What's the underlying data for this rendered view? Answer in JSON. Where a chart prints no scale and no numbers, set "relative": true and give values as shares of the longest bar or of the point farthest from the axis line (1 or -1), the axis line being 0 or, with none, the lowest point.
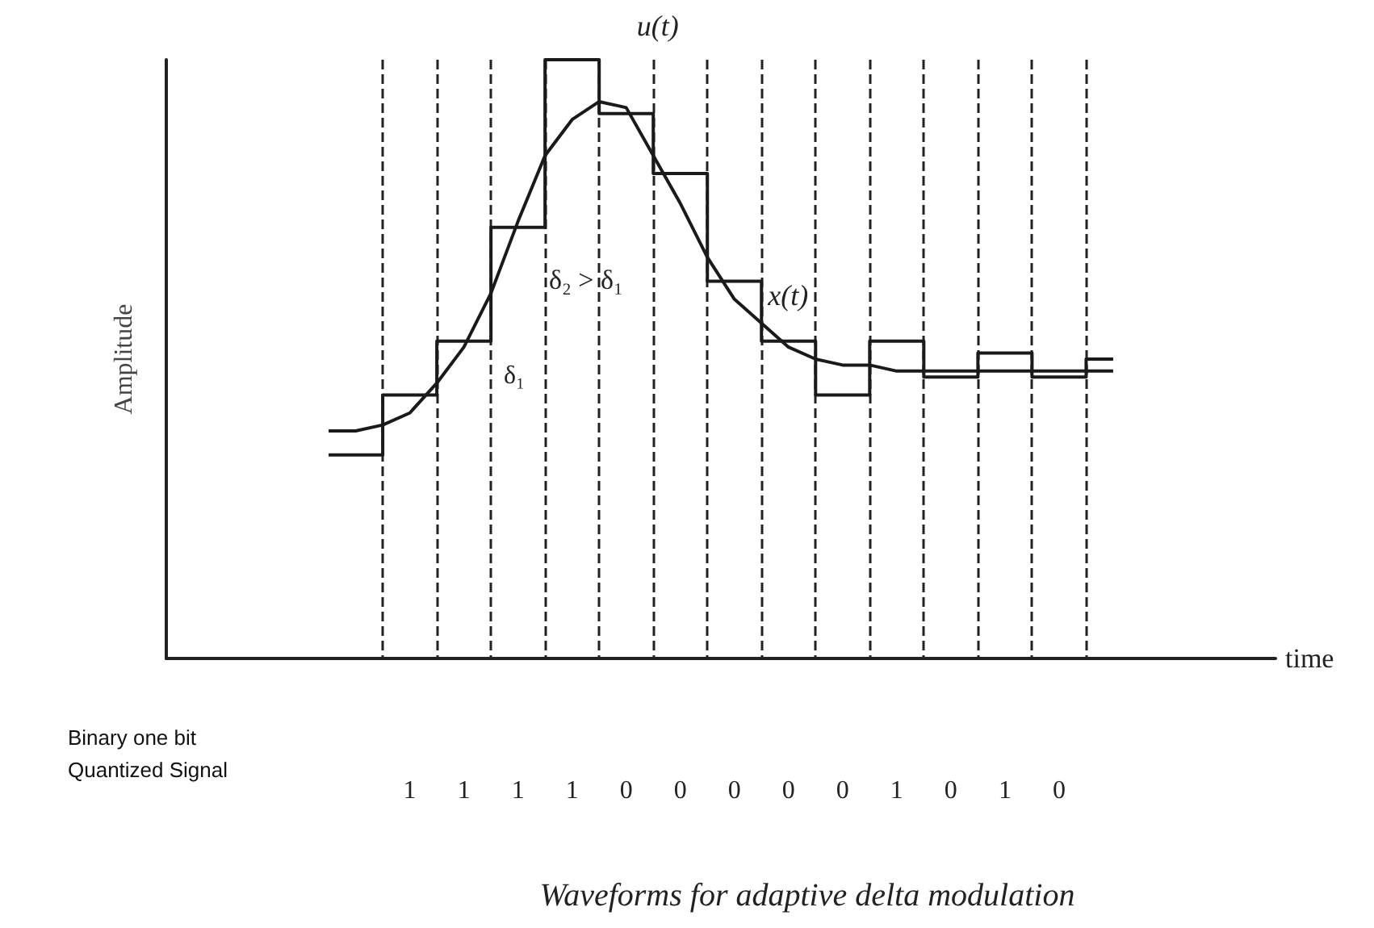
{
  "chart_data": {
    "type": "line",
    "title": "Waveforms for adaptive delta modulation",
    "xlabel": "time",
    "ylabel": "Amplitude",
    "relative": true,
    "grid": "x",
    "legend": false,
    "marker": "none",
    "line_style": "solid",
    "categories": [
      null,
      null,
      null,
      null,
      null,
      null,
      null,
      null,
      null,
      null,
      null,
      null,
      null,
      null,
      null,
      null,
      null,
      null,
      null,
      null,
      null,
      null,
      null,
      null,
      null,
      null,
      null,
      null,
      null,
      null,
      null,
      null,
      null,
      null,
      null,
      null,
      null,
      null,
      null,
      null,
      null,
      null
    ],
    "series": [
      {
        "name": "u(t)",
        "type": "step",
        "color": "#1a1a1a",
        "values": [
          null,
          null,
          null,
          null,
          null,
          null,
          0.34,
          0.34,
          0.44,
          0.44,
          0.53,
          0.53,
          0.72,
          0.72,
          1,
          1,
          0.91,
          0.91,
          0.81,
          0.81,
          0.63,
          0.63,
          0.53,
          0.53,
          0.44,
          0.44,
          0.53,
          0.53,
          0.47,
          0.47,
          0.51,
          0.51,
          0.47,
          0.47,
          0.5,
          0.5,
          null,
          null,
          null,
          null,
          null,
          null
        ]
      },
      {
        "name": "x(t)",
        "type": "line",
        "color": "#1a1a1a",
        "values": [
          null,
          null,
          null,
          null,
          null,
          null,
          0.38,
          0.38,
          0.39,
          0.41,
          0.46,
          0.52,
          0.61,
          0.73,
          0.84,
          0.9,
          0.93,
          0.92,
          0.84,
          0.76,
          0.67,
          0.6,
          0.56,
          0.52,
          0.5,
          0.49,
          0.49,
          0.48,
          0.48,
          0.48,
          0.48,
          0.48,
          0.48,
          0.48,
          0.48,
          0.48,
          null,
          null,
          null,
          null,
          null,
          null
        ]
      }
    ],
    "annotations": [
      "δ₂ > δ₁",
      "δ₁",
      "Binary one bit\nQuantized Signal",
      "1",
      "1",
      "1",
      "1",
      "0",
      "0",
      "0",
      "0",
      "0",
      "1",
      "0",
      "1",
      "0"
    ]
  }
}
